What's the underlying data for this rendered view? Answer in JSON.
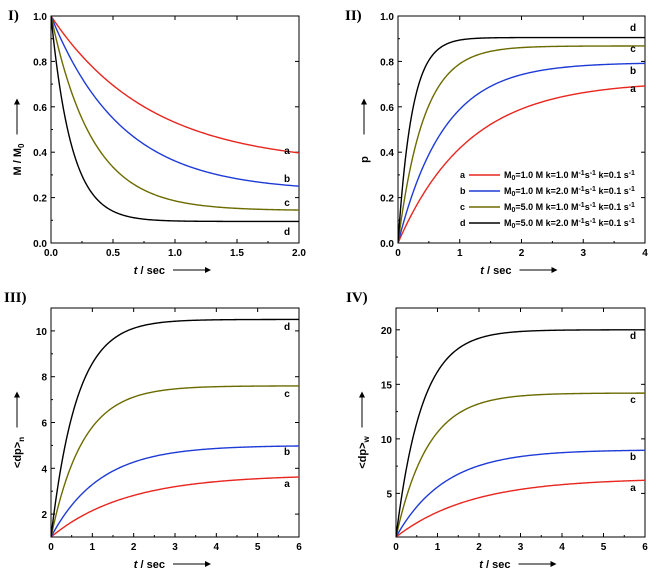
{
  "chart_data": [
    {
      "id": "I",
      "panel_label": "I)",
      "type": "line",
      "xlabel": "t / sec",
      "ylabel": "M / M",
      "ylabel_sub": "0",
      "xlim": [
        0,
        2.0
      ],
      "ylim": [
        0,
        1.0
      ],
      "xticks": [
        0.0,
        0.5,
        1.0,
        1.5,
        2.0
      ],
      "xtick_labels": [
        "0.0",
        "0.5",
        "1.0",
        "1.5",
        "2.0"
      ],
      "yticks": [
        0.0,
        0.2,
        0.4,
        0.6,
        0.8,
        1.0
      ],
      "ytick_labels": [
        "0.0",
        "0.2",
        "0.4",
        "0.6",
        "0.8",
        "1.0"
      ],
      "model": "decay",
      "series": [
        {
          "name": "a",
          "label": "a",
          "color": "#e8261f",
          "y0": 1.0,
          "yinf": 0.343,
          "rate": 1.25
        },
        {
          "name": "b",
          "label": "b",
          "color": "#1f3bd6",
          "y0": 1.0,
          "yinf": 0.227,
          "rate": 1.75
        },
        {
          "name": "c",
          "label": "c",
          "color": "#6b6b00",
          "y0": 1.0,
          "yinf": 0.143,
          "rate": 3.0
        },
        {
          "name": "d",
          "label": "d",
          "color": "#000000",
          "y0": 1.0,
          "yinf": 0.095,
          "rate": 6.0
        }
      ]
    },
    {
      "id": "II",
      "panel_label": "II)",
      "type": "line",
      "xlabel": "t / sec",
      "ylabel": "p",
      "ylabel_sub": "",
      "xlim": [
        0,
        4
      ],
      "ylim": [
        0,
        1.0
      ],
      "xticks": [
        0,
        1,
        2,
        3,
        4
      ],
      "xtick_labels": [
        "0",
        "1",
        "2",
        "3",
        "4"
      ],
      "yticks": [
        0.0,
        0.2,
        0.4,
        0.6,
        0.8,
        1.0
      ],
      "ytick_labels": [
        "0.0",
        "0.2",
        "0.4",
        "0.6",
        "0.8",
        "1.0"
      ],
      "model": "growth",
      "legend_position": "center-right",
      "legend": [
        {
          "key": "a",
          "color": "#e8261f",
          "text": "M0=1.0 M  k=1.0 M-1s-1  k=0.1 s-1",
          "m_sub": "0",
          "m_val": "=1.0 M  k=1.0 M",
          "k_sup": "-1",
          "k_rest": "s",
          "k_sup2": "-1",
          "kt_text": "  k=0.1 s",
          "kt_sup": "-1"
        },
        {
          "key": "b",
          "color": "#1f3bd6",
          "text": "M0=1.0 M  k=2.0 M-1s-1  k=0.1 s-1",
          "m_sub": "0",
          "m_val": "=1.0 M  k=2.0 M",
          "k_sup": "-1",
          "k_rest": "s",
          "k_sup2": "-1",
          "kt_text": "  k=0.1 s",
          "kt_sup": "-1"
        },
        {
          "key": "c",
          "color": "#6b6b00",
          "text": "M0=5.0 M  k=1.0 M-1s-1  k=0.1 s-1",
          "m_sub": "0",
          "m_val": "=5.0 M  k=1.0 M",
          "k_sup": "-1",
          "k_rest": "s",
          "k_sup2": "-1",
          "kt_text": "  k=0.1 s",
          "kt_sup": "-1"
        },
        {
          "key": "d",
          "color": "#000000",
          "text": "M0=5.0 M  k=2.0 M-1s-1  k=0.1 s-1",
          "m_sub": "0",
          "m_val": "=5.0 M  k=2.0 M",
          "k_sup": "-1",
          "k_rest": "s",
          "k_sup2": "-1",
          "kt_text": "  k=0.1 s",
          "kt_sup": "-1"
        }
      ],
      "series": [
        {
          "name": "a",
          "label": "a",
          "color": "#e8261f",
          "y0": 0.0,
          "yinf": 0.713,
          "rate": 0.88
        },
        {
          "name": "b",
          "label": "b",
          "color": "#1f3bd6",
          "y0": 0.0,
          "yinf": 0.795,
          "rate": 1.35
        },
        {
          "name": "c",
          "label": "c",
          "color": "#6b6b00",
          "y0": 0.0,
          "yinf": 0.868,
          "rate": 2.4
        },
        {
          "name": "d",
          "label": "d",
          "color": "#000000",
          "y0": 0.0,
          "yinf": 0.905,
          "rate": 4.4
        }
      ]
    },
    {
      "id": "III",
      "panel_label": "III)",
      "type": "line",
      "xlabel": "t / sec",
      "ylabel": "<dp>",
      "ylabel_sub": "n",
      "xlim": [
        0,
        6
      ],
      "ylim": [
        1,
        11
      ],
      "xticks": [
        0,
        1,
        2,
        3,
        4,
        5,
        6
      ],
      "xtick_labels": [
        "0",
        "1",
        "2",
        "3",
        "4",
        "5",
        "6"
      ],
      "yticks": [
        2,
        4,
        6,
        8,
        10
      ],
      "ytick_labels": [
        "2",
        "4",
        "6",
        "8",
        "10"
      ],
      "model": "growth",
      "series": [
        {
          "name": "a",
          "label": "a",
          "color": "#e8261f",
          "y0": 1.0,
          "yinf": 3.72,
          "rate": 0.55
        },
        {
          "name": "b",
          "label": "b",
          "color": "#1f3bd6",
          "y0": 1.0,
          "yinf": 5.0,
          "rate": 0.85
        },
        {
          "name": "c",
          "label": "c",
          "color": "#6b6b00",
          "y0": 1.0,
          "yinf": 7.6,
          "rate": 1.3
        },
        {
          "name": "d",
          "label": "d",
          "color": "#000000",
          "y0": 1.0,
          "yinf": 10.5,
          "rate": 1.6
        }
      ]
    },
    {
      "id": "IV",
      "panel_label": "IV)",
      "type": "line",
      "xlabel": "t / sec",
      "ylabel": "<dp>",
      "ylabel_sub": "w",
      "xlim": [
        0,
        6
      ],
      "ylim": [
        1,
        22
      ],
      "xticks": [
        0,
        1,
        2,
        3,
        4,
        5,
        6
      ],
      "xtick_labels": [
        "0",
        "1",
        "2",
        "3",
        "4",
        "5",
        "6"
      ],
      "yticks": [
        5,
        10,
        15,
        20
      ],
      "ytick_labels": [
        "5",
        "10",
        "15",
        "20"
      ],
      "model": "growth",
      "series": [
        {
          "name": "a",
          "label": "a",
          "color": "#e8261f",
          "y0": 1.0,
          "yinf": 6.4,
          "rate": 0.55
        },
        {
          "name": "b",
          "label": "b",
          "color": "#1f3bd6",
          "y0": 1.0,
          "yinf": 9.0,
          "rate": 0.85
        },
        {
          "name": "c",
          "label": "c",
          "color": "#6b6b00",
          "y0": 1.0,
          "yinf": 14.2,
          "rate": 1.3
        },
        {
          "name": "d",
          "label": "d",
          "color": "#000000",
          "y0": 1.0,
          "yinf": 20.0,
          "rate": 1.6
        }
      ]
    }
  ]
}
